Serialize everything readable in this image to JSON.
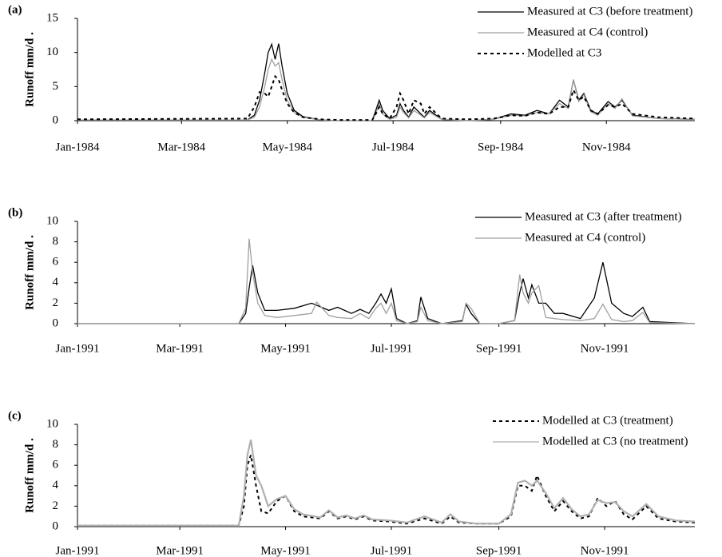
{
  "chart_data": [
    {
      "type": "line",
      "panel_label": "(a)",
      "ylabel": "Runoff mm/d .",
      "xlim": [
        0,
        356
      ],
      "ylim": [
        0,
        15
      ],
      "yticks": [
        0,
        5,
        10,
        15
      ],
      "xticks": [
        {
          "value": 0,
          "label": "Jan-1984"
        },
        {
          "value": 60,
          "label": "Mar-1984"
        },
        {
          "value": 121,
          "label": "May-1984"
        },
        {
          "value": 182,
          "label": "Jul-1984"
        },
        {
          "value": 244,
          "label": "Sep-1984"
        },
        {
          "value": 305,
          "label": "Nov-1984"
        }
      ],
      "x": [
        0,
        98,
        102,
        105,
        108,
        110,
        112,
        114,
        116,
        118,
        121,
        125,
        130,
        140,
        150,
        170,
        172,
        174,
        176,
        180,
        184,
        186,
        188,
        191,
        194,
        198,
        200,
        203,
        210,
        225,
        240,
        250,
        258,
        265,
        272,
        278,
        283,
        286,
        289,
        292,
        296,
        300,
        306,
        310,
        314,
        320,
        335,
        356
      ],
      "series": [
        {
          "name": "Measured at C3 (before treatment)",
          "color": "#000000",
          "dash": false,
          "values": [
            0.1,
            0.1,
            0.8,
            3,
            7,
            10,
            11.2,
            9,
            11.3,
            8,
            4,
            1.5,
            0.6,
            0.1,
            0,
            0,
            1.5,
            3,
            1.5,
            0.3,
            0.8,
            2.5,
            1.5,
            0.5,
            2,
            1,
            0.5,
            1.5,
            0.2,
            0,
            0.2,
            1,
            0.8,
            1.5,
            1,
            3,
            2,
            6,
            3,
            4,
            1.5,
            1,
            2.8,
            2,
            3,
            0.8,
            0.3,
            0.2
          ]
        },
        {
          "name": "Measured at C4 (control)",
          "color": "#a0a0a0",
          "dash": false,
          "values": [
            0.1,
            0.1,
            0.5,
            2,
            5,
            7.5,
            9,
            8,
            8.5,
            6,
            3,
            1.2,
            0.5,
            0.1,
            0,
            0,
            1,
            2.5,
            1,
            0.2,
            0.5,
            2,
            1.2,
            0.4,
            1.5,
            0.8,
            0.4,
            1.2,
            0.2,
            0,
            0.2,
            0.8,
            0.7,
            1.2,
            1,
            2.5,
            1.8,
            6,
            2.8,
            3.8,
            1.3,
            0.8,
            2.5,
            1.8,
            3.2,
            0.7,
            0.3,
            0.2
          ]
        },
        {
          "name": "Modelled at C3",
          "color": "#000000",
          "dash": true,
          "values": [
            0.2,
            0.3,
            2,
            4.2,
            4,
            3.5,
            5,
            6.5,
            6,
            4.5,
            2.5,
            1.2,
            0.5,
            0.2,
            0.1,
            0.1,
            1,
            2,
            1,
            0.3,
            2,
            4,
            3,
            1,
            3,
            2.5,
            1,
            2,
            0.3,
            0.2,
            0.3,
            0.8,
            0.7,
            1.2,
            1,
            2,
            2,
            4.5,
            3,
            3.5,
            1.5,
            1,
            2.3,
            2,
            2.5,
            1,
            0.5,
            0.3
          ]
        }
      ]
    },
    {
      "type": "line",
      "panel_label": "(b)",
      "ylabel": "Runoff mm/d .",
      "xlim": [
        0,
        356
      ],
      "ylim": [
        0,
        10
      ],
      "yticks": [
        0,
        2,
        4,
        6,
        8,
        10
      ],
      "xticks": [
        {
          "value": 0,
          "label": "Jan-1991"
        },
        {
          "value": 59,
          "label": "Mar-1991"
        },
        {
          "value": 120,
          "label": "May-1991"
        },
        {
          "value": 181,
          "label": "Jul-1991"
        },
        {
          "value": 243,
          "label": "Sep-1991"
        },
        {
          "value": 304,
          "label": "Nov-1991"
        }
      ],
      "x": [
        0,
        93,
        97,
        99,
        101,
        104,
        108,
        115,
        125,
        135,
        138,
        145,
        150,
        158,
        163,
        168,
        172,
        175,
        178,
        181,
        184,
        190,
        196,
        198,
        202,
        210,
        222,
        224,
        227,
        232,
        243,
        252,
        255,
        257,
        260,
        262,
        266,
        270,
        275,
        280,
        290,
        298,
        303,
        308,
        315,
        320,
        326,
        330,
        356
      ],
      "series": [
        {
          "name": "Measured at C3 (after treatment)",
          "color": "#000000",
          "dash": false,
          "values": [
            0,
            0,
            1,
            3.5,
            5.7,
            3,
            1.3,
            1.3,
            1.5,
            2,
            1.8,
            1.3,
            1.6,
            1,
            1.4,
            1,
            2,
            2.9,
            2,
            3.4,
            0.5,
            0,
            0.3,
            2.6,
            0.5,
            0,
            0.3,
            1.9,
            1,
            0,
            0,
            0.3,
            3,
            4.4,
            2.5,
            3.8,
            2,
            2,
            1,
            1,
            0.5,
            2.5,
            6,
            2,
            1,
            0.7,
            1.6,
            0.2,
            0
          ]
        },
        {
          "name": "Measured at C4 (control)",
          "color": "#a0a0a0",
          "dash": false,
          "values": [
            0,
            0,
            1.5,
            8.3,
            5,
            2,
            0.8,
            0.6,
            0.8,
            1,
            2.1,
            0.8,
            0.6,
            0.5,
            1,
            0.5,
            1.5,
            2,
            1,
            2,
            0.3,
            0,
            0.2,
            1.6,
            0.3,
            0,
            0.2,
            2,
            1.5,
            0,
            0,
            0.3,
            4.8,
            3,
            2,
            3,
            3.7,
            0.6,
            0.5,
            0.4,
            0.3,
            0.5,
            1.9,
            0.4,
            0.2,
            0.3,
            1.1,
            0.1,
            0
          ]
        }
      ]
    },
    {
      "type": "line",
      "panel_label": "(c)",
      "ylabel": "Runoff mm/d .",
      "xlim": [
        0,
        356
      ],
      "ylim": [
        0,
        10
      ],
      "yticks": [
        0,
        2,
        4,
        6,
        8,
        10
      ],
      "xticks": [
        {
          "value": 0,
          "label": "Jan-1991"
        },
        {
          "value": 59,
          "label": "Mar-1991"
        },
        {
          "value": 120,
          "label": "May-1991"
        },
        {
          "value": 181,
          "label": "Jul-1991"
        },
        {
          "value": 243,
          "label": "Sep-1991"
        },
        {
          "value": 304,
          "label": "Nov-1991"
        }
      ],
      "x": [
        0,
        93,
        96,
        98,
        100,
        103,
        106,
        110,
        115,
        120,
        125,
        130,
        140,
        145,
        150,
        155,
        160,
        165,
        170,
        180,
        190,
        200,
        210,
        215,
        220,
        230,
        243,
        250,
        254,
        258,
        262,
        265,
        270,
        275,
        280,
        285,
        290,
        295,
        300,
        305,
        310,
        315,
        320,
        328,
        335,
        345,
        356
      ],
      "series": [
        {
          "name": "Modelled at C3 (treatment)",
          "color": "#000000",
          "dash": true,
          "values": [
            0.1,
            0.1,
            2,
            6,
            7,
            4,
            1.5,
            1.3,
            2.5,
            3,
            1.5,
            1,
            0.8,
            1.5,
            0.8,
            1,
            0.7,
            1,
            0.6,
            0.5,
            0.3,
            0.8,
            0.3,
            1,
            0.4,
            0.3,
            0.3,
            1,
            4,
            4,
            3.5,
            5,
            3,
            1.5,
            2.5,
            1.5,
            0.8,
            1,
            2.8,
            2,
            2.5,
            1.2,
            0.7,
            2,
            0.8,
            0.5,
            0.4
          ]
        },
        {
          "name": "Modelled at C3 (no treatment)",
          "color": "#b0b0b0",
          "dash": false,
          "values": [
            0.1,
            0.1,
            3,
            7,
            8.5,
            5,
            4,
            2,
            2.7,
            3,
            1.7,
            1.2,
            0.9,
            1.6,
            0.9,
            1.1,
            0.8,
            1.1,
            0.7,
            0.6,
            0.4,
            1,
            0.4,
            1.2,
            0.5,
            0.3,
            0.3,
            1.2,
            4.3,
            4.5,
            4,
            4.5,
            3.3,
            1.8,
            2.8,
            1.7,
            1,
            1.2,
            2.6,
            2.3,
            2.4,
            1.5,
            1,
            2.2,
            1,
            0.6,
            0.5
          ]
        }
      ]
    }
  ]
}
